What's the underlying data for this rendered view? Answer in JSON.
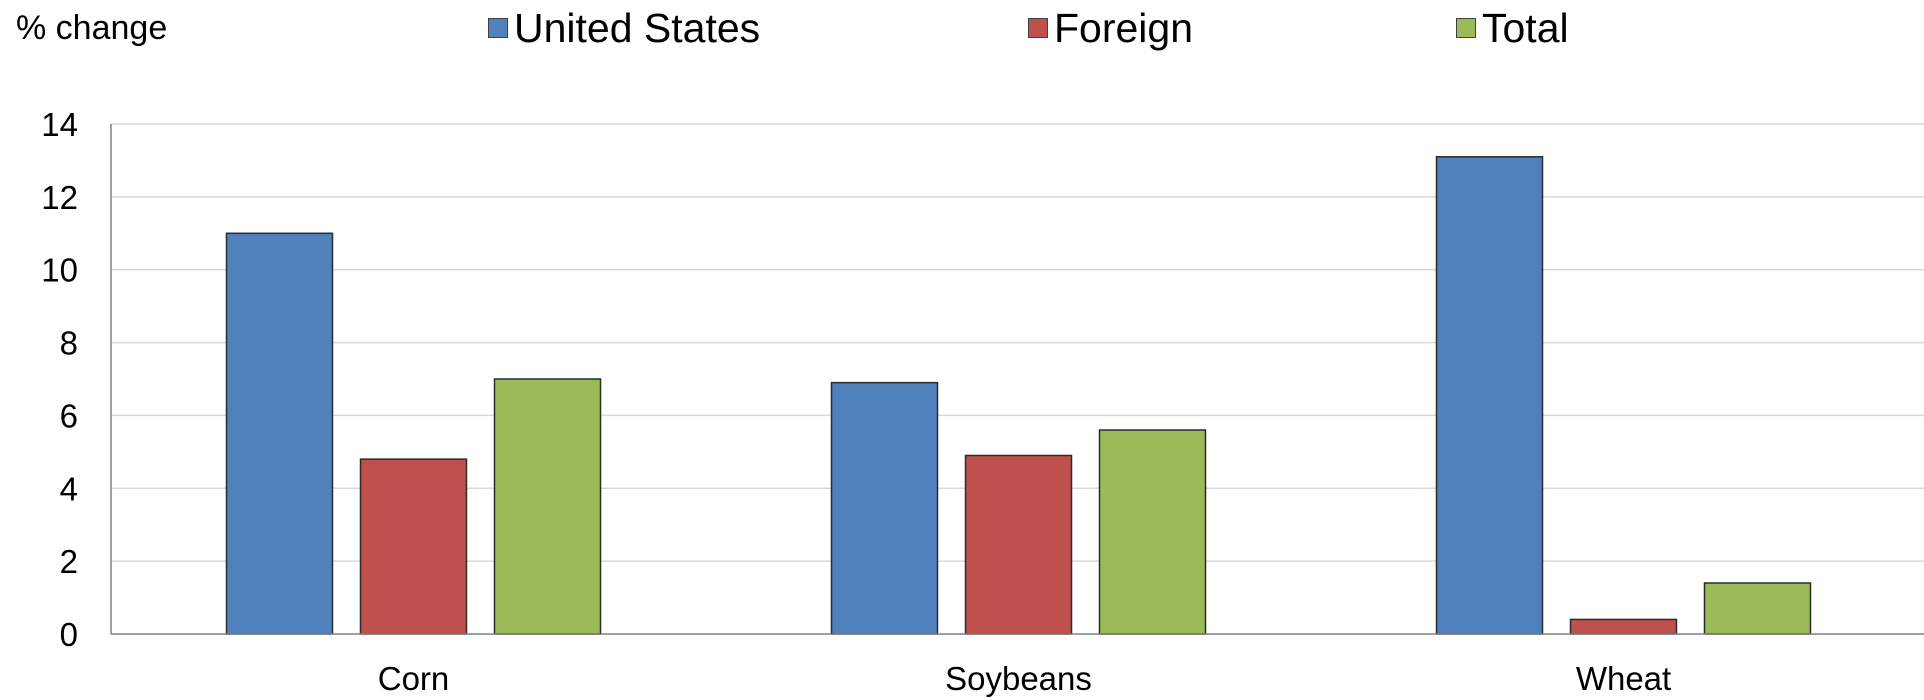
{
  "chart_data": {
    "type": "bar",
    "title": "",
    "xlabel": "",
    "ylabel": "% change",
    "categories": [
      "Corn",
      "Soybeans",
      "Wheat"
    ],
    "series": [
      {
        "name": "United States",
        "color": "#4F81BD",
        "values": [
          11.0,
          6.9,
          13.1
        ]
      },
      {
        "name": "Foreign",
        "color": "#C0504D",
        "values": [
          4.8,
          4.9,
          0.4
        ]
      },
      {
        "name": "Total",
        "color": "#9BBB59",
        "values": [
          7.0,
          5.6,
          1.4
        ]
      }
    ],
    "ylim": [
      0,
      14
    ],
    "yticks": [
      "0",
      "2",
      "4",
      "6",
      "8",
      "10",
      "12",
      "14"
    ],
    "grid": true,
    "legend_position": "top"
  }
}
